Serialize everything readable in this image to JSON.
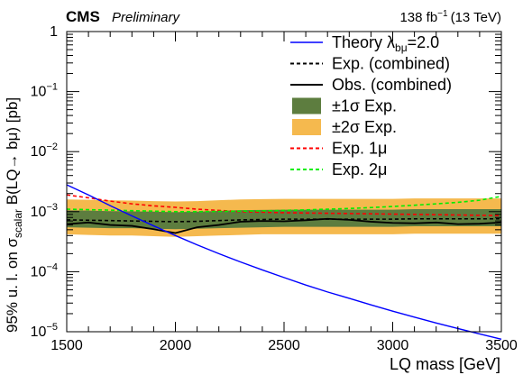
{
  "chart_data": {
    "type": "line",
    "experiment": "CMS",
    "status": "Preliminary",
    "lumi_value": "138 fb",
    "lumi_exponent": "−1",
    "lumi_energy": "(13 TeV)",
    "xlabel": "LQ mass [GeV]",
    "ylabel": {
      "prefix": "95% u. l. on σ",
      "prefix_sub": "scalar",
      "middle": " B(LQ",
      "arrow": "→",
      "suffix": " bμ) [pb]"
    },
    "xlim": [
      1500,
      3500
    ],
    "ylim": [
      1e-05,
      1
    ],
    "yscale": "log",
    "x_ticks": [
      1500,
      2000,
      2500,
      3000,
      3500
    ],
    "x_tick_labels": [
      "1500",
      "2000",
      "2500",
      "3000",
      "3500"
    ],
    "y_ticks": [
      {
        "value": 1,
        "base": "1",
        "exp": ""
      },
      {
        "value": 0.1,
        "base": "10",
        "exp": "−1"
      },
      {
        "value": 0.01,
        "base": "10",
        "exp": "−2"
      },
      {
        "value": 0.001,
        "base": "10",
        "exp": "−3"
      },
      {
        "value": 0.0001,
        "base": "10",
        "exp": "−4"
      },
      {
        "value": 1e-05,
        "base": "10",
        "exp": "−5"
      }
    ],
    "x": [
      1500,
      1600,
      1700,
      1800,
      1900,
      2000,
      2100,
      2200,
      2300,
      2400,
      2500,
      2600,
      2700,
      2800,
      2900,
      3000,
      3100,
      3200,
      3300,
      3400,
      3500
    ],
    "legend_position": "top-right",
    "series": [
      {
        "name": "Theory λ",
        "name_sub": "bμ",
        "name_suffix": "=2.0",
        "style": "theory",
        "color": "#0000ff",
        "values": [
          0.0028,
          0.0019,
          0.00126,
          0.00085,
          0.00058,
          0.0004,
          0.00028,
          0.0002,
          0.000145,
          0.000107,
          8e-05,
          6e-05,
          4.6e-05,
          3.6e-05,
          2.8e-05,
          2.2e-05,
          1.75e-05,
          1.4e-05,
          1.13e-05,
          9.2e-06,
          7.5e-06
        ]
      },
      {
        "name": "Exp. (combined)",
        "style": "expected",
        "color": "#000000",
        "values": [
          0.00073,
          0.00072,
          0.00071,
          0.0007,
          0.00069,
          0.00068,
          0.00069,
          0.00071,
          0.00073,
          0.00074,
          0.00075,
          0.00075,
          0.00075,
          0.00075,
          0.00075,
          0.00075,
          0.00076,
          0.00076,
          0.00076,
          0.00076,
          0.00076
        ]
      },
      {
        "name": "Obs. (combined)",
        "style": "observed",
        "color": "#000000",
        "values": [
          0.00062,
          0.00066,
          0.0006,
          0.00058,
          0.00051,
          0.00044,
          0.00055,
          0.0006,
          0.00068,
          0.0007,
          0.00069,
          0.00072,
          0.00076,
          0.00073,
          0.00068,
          0.00065,
          0.00064,
          0.00066,
          0.00062,
          0.00063,
          0.00066
        ]
      },
      {
        "name": "±1σ Exp.",
        "style": "band1",
        "color": "#5d7d3f",
        "low": [
          0.00055,
          0.00054,
          0.00053,
          0.00053,
          0.00052,
          0.00051,
          0.00052,
          0.00053,
          0.00054,
          0.00055,
          0.00056,
          0.00056,
          0.00056,
          0.00056,
          0.00056,
          0.00056,
          0.00057,
          0.00057,
          0.00057,
          0.00057,
          0.00057
        ],
        "high": [
          0.00105,
          0.00104,
          0.00102,
          0.00101,
          0.001,
          0.00098,
          0.001,
          0.00103,
          0.00106,
          0.00107,
          0.00108,
          0.00108,
          0.00108,
          0.00108,
          0.00108,
          0.00108,
          0.0011,
          0.0011,
          0.0011,
          0.0011,
          0.0011
        ]
      },
      {
        "name": "±2σ Exp.",
        "style": "band2",
        "color": "#f5b94e",
        "low": [
          0.00042,
          0.00041,
          0.0004,
          0.0004,
          0.00039,
          0.00038,
          0.00039,
          0.0004,
          0.00041,
          0.00042,
          0.00042,
          0.00042,
          0.00042,
          0.00042,
          0.00042,
          0.00042,
          0.00043,
          0.00043,
          0.00043,
          0.00043,
          0.00043
        ],
        "high": [
          0.0016,
          0.00158,
          0.00155,
          0.00153,
          0.0015,
          0.00148,
          0.0015,
          0.00155,
          0.0016,
          0.00162,
          0.00163,
          0.00163,
          0.00163,
          0.00163,
          0.00163,
          0.00163,
          0.00166,
          0.00166,
          0.00166,
          0.00166,
          0.00166
        ]
      },
      {
        "name": "Exp. 1μ",
        "style": "exp1mu",
        "color": "#ff0000",
        "values": [
          0.0019,
          0.0017,
          0.0015,
          0.00135,
          0.00125,
          0.00118,
          0.0011,
          0.00105,
          0.001,
          0.00098,
          0.00096,
          0.00095,
          0.00094,
          0.00093,
          0.00092,
          0.00091,
          0.0009,
          0.00089,
          0.00088,
          0.00087,
          0.00086
        ]
      },
      {
        "name": "Exp. 2μ",
        "style": "exp2mu",
        "color": "#00ee00",
        "values": [
          0.0011,
          0.00108,
          0.00106,
          0.00104,
          0.00102,
          0.001,
          0.001,
          0.00101,
          0.00102,
          0.00103,
          0.00105,
          0.00107,
          0.0011,
          0.00113,
          0.00117,
          0.00122,
          0.00128,
          0.00135,
          0.00143,
          0.00155,
          0.0018
        ]
      }
    ]
  }
}
